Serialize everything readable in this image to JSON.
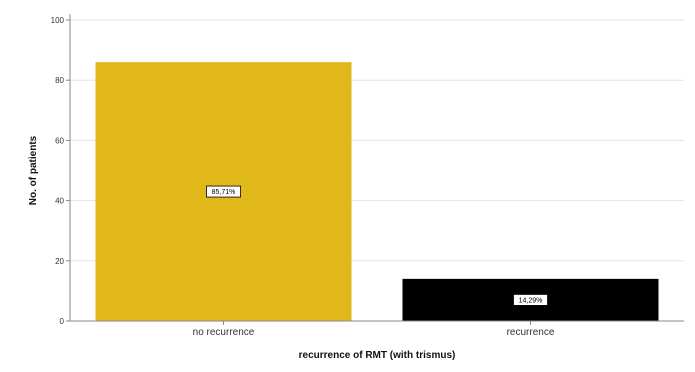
{
  "chart_data": {
    "type": "bar",
    "categories": [
      "no recurrence",
      "recurrence"
    ],
    "values": [
      86,
      14
    ],
    "data_labels": [
      "85,71%",
      "14,29%"
    ],
    "colors": [
      "#E0B81A",
      "#000000"
    ],
    "title": "",
    "xlabel": "recurrence of RMT (with trismus)",
    "ylabel": "No. of patients",
    "ylim": [
      0,
      100
    ],
    "yticks": [
      0,
      20,
      40,
      60,
      80,
      100
    ],
    "grid": true,
    "legend": "none"
  }
}
